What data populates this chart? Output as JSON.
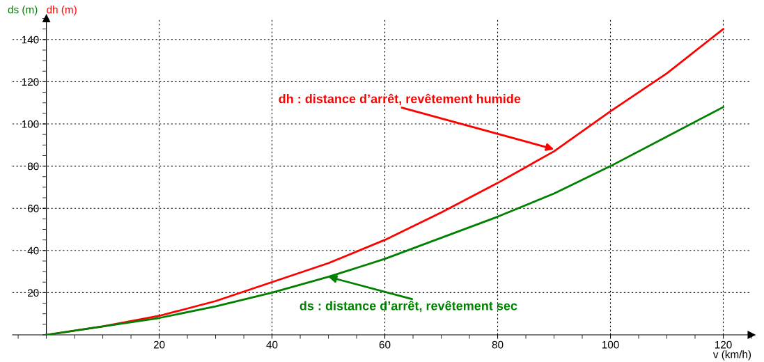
{
  "chart_data": {
    "type": "line",
    "xlabel": "v (km/h)",
    "ylabel": "ds (m)",
    "y2label": "dh (m)",
    "x": [
      0,
      10,
      20,
      30,
      40,
      50,
      60,
      70,
      80,
      90,
      100,
      110,
      120
    ],
    "series": [
      {
        "color": "#ff0000",
        "values": [
          0,
          4,
          9,
          16,
          25,
          34,
          45,
          58,
          72,
          87,
          106,
          124,
          145
        ]
      },
      {
        "color": "#008000",
        "values": [
          0,
          4,
          8,
          13.5,
          20,
          27.5,
          36,
          46,
          56,
          67,
          80,
          94,
          108
        ]
      }
    ],
    "xlim": [
      -6,
      125
    ],
    "ylim": [
      0,
      150
    ],
    "xticks": [
      20,
      40,
      60,
      80,
      100,
      120
    ],
    "yticks": [
      20,
      40,
      60,
      80,
      100,
      120,
      140
    ],
    "grid": true,
    "line_style": "solid",
    "marker": "none",
    "annotations": [
      {
        "text": "dh : distance d’arrêt, revêtement humide",
        "x": 90,
        "y": 88
      },
      {
        "text": "ds : distance d’arrêt, revêtement sec",
        "x": 50,
        "y": 27.5
      }
    ]
  }
}
